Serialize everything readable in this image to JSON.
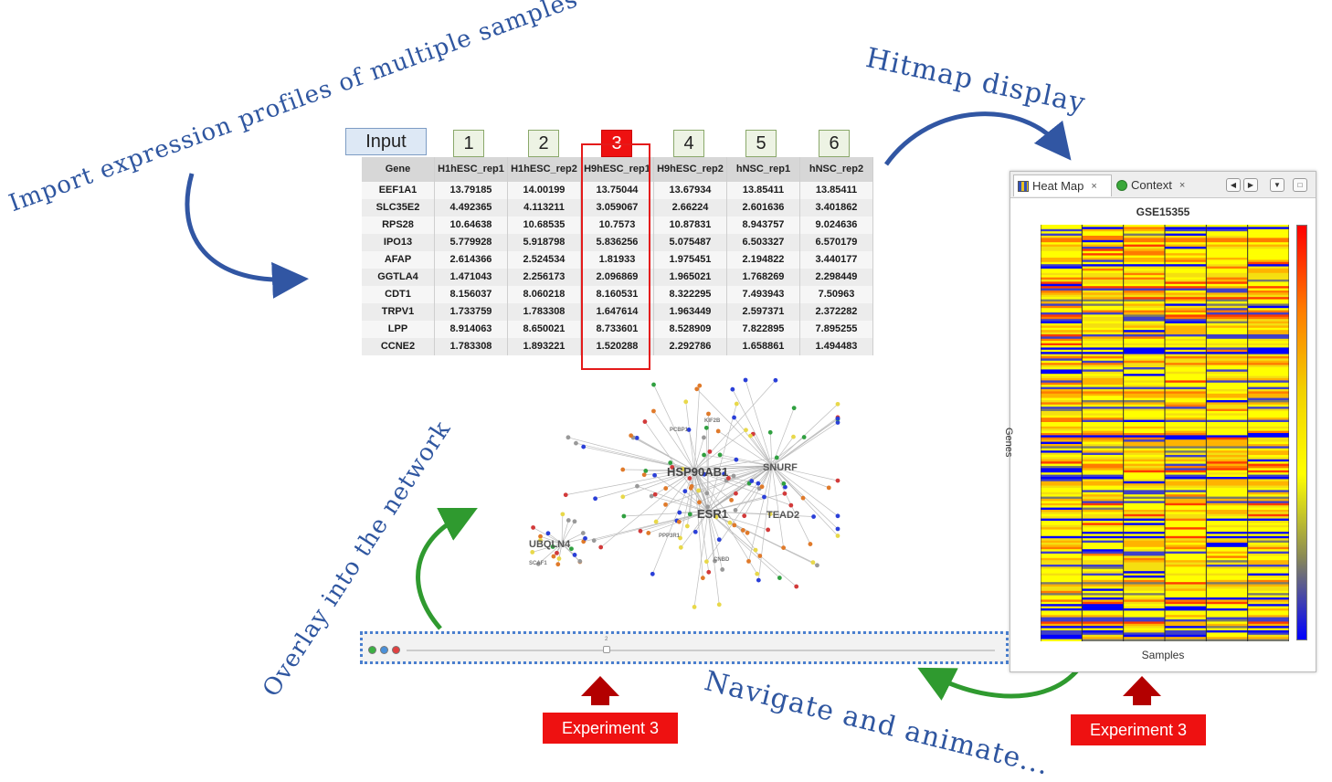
{
  "annotations": {
    "import": "Import expression profiles of multiple samples",
    "hitmap": "Hitmap display",
    "overlay": "Overlay into the network",
    "navigate": "Navigate and animate..."
  },
  "column_labels": [
    "Input",
    "1",
    "2",
    "3",
    "4",
    "5",
    "6"
  ],
  "table": {
    "headers": [
      "Gene",
      "H1hESC_rep1",
      "H1hESC_rep2",
      "H9hESC_rep1",
      "H9hESC_rep2",
      "hNSC_rep1",
      "hNSC_rep2"
    ],
    "rows": [
      [
        "EEF1A1",
        "13.79185",
        "14.00199",
        "13.75044",
        "13.67934",
        "13.85411",
        "13.85411"
      ],
      [
        "SLC35E2",
        "4.492365",
        "4.113211",
        "3.059067",
        "2.66224",
        "2.601636",
        "3.401862"
      ],
      [
        "RPS28",
        "10.64638",
        "10.68535",
        "10.7573",
        "10.87831",
        "8.943757",
        "9.024636"
      ],
      [
        "IPO13",
        "5.779928",
        "5.918798",
        "5.836256",
        "5.075487",
        "6.503327",
        "6.570179"
      ],
      [
        "AFAP",
        "2.614366",
        "2.524534",
        "1.81933",
        "1.975451",
        "2.194822",
        "3.440177"
      ],
      [
        "GGTLA4",
        "1.471043",
        "2.256173",
        "2.096869",
        "1.965021",
        "1.768269",
        "2.298449"
      ],
      [
        "CDT1",
        "8.156037",
        "8.060218",
        "8.160531",
        "8.322295",
        "7.493943",
        "7.50963"
      ],
      [
        "TRPV1",
        "1.733759",
        "1.783308",
        "1.647614",
        "1.963449",
        "2.597371",
        "2.372282"
      ],
      [
        "LPP",
        "8.914063",
        "8.650021",
        "8.733601",
        "8.528909",
        "7.822895",
        "7.895255"
      ],
      [
        "CCNE2",
        "1.783308",
        "1.893221",
        "1.520288",
        "2.292786",
        "1.658861",
        "1.494483"
      ]
    ],
    "selected_column": "3"
  },
  "network": {
    "labels": [
      "HSP90AB1",
      "ESR1",
      "SNURF",
      "TEAD2",
      "UBQLN4",
      "KIF2B",
      "PCBP1",
      "PPP3R1",
      "CNBD",
      "SCAF1"
    ],
    "node_colors": [
      "#2a3fd8",
      "#e8d84a",
      "#e07a2a",
      "#999999",
      "#d23a3a",
      "#30a040"
    ]
  },
  "slider": {
    "value": "2"
  },
  "heatmap": {
    "tabs": [
      {
        "label": "Heat Map",
        "icon": "heatmap-icon"
      },
      {
        "label": "Context",
        "icon": "context-icon"
      }
    ],
    "close_glyph": "×",
    "window_buttons": [
      "◀",
      "▶",
      "▼",
      "□"
    ],
    "title": "GSE15355",
    "ylabel": "Genes",
    "xlabel": "Samples",
    "columns": 6,
    "colors": [
      "#ffff00",
      "#f5df10",
      "#ffb300",
      "#ff7a00",
      "#ff3b00",
      "#7a7a6a",
      "#4040c8",
      "#0000ff"
    ]
  },
  "experiment_labels": [
    "Experiment 3",
    "Experiment 3"
  ],
  "colors": {
    "annotation_blue": "#2f56a0",
    "arrow_blue": "#3156a3",
    "arrow_green": "#2f9a2f",
    "highlight_red": "#ee1111",
    "experiment_arrow": "#b30000"
  }
}
